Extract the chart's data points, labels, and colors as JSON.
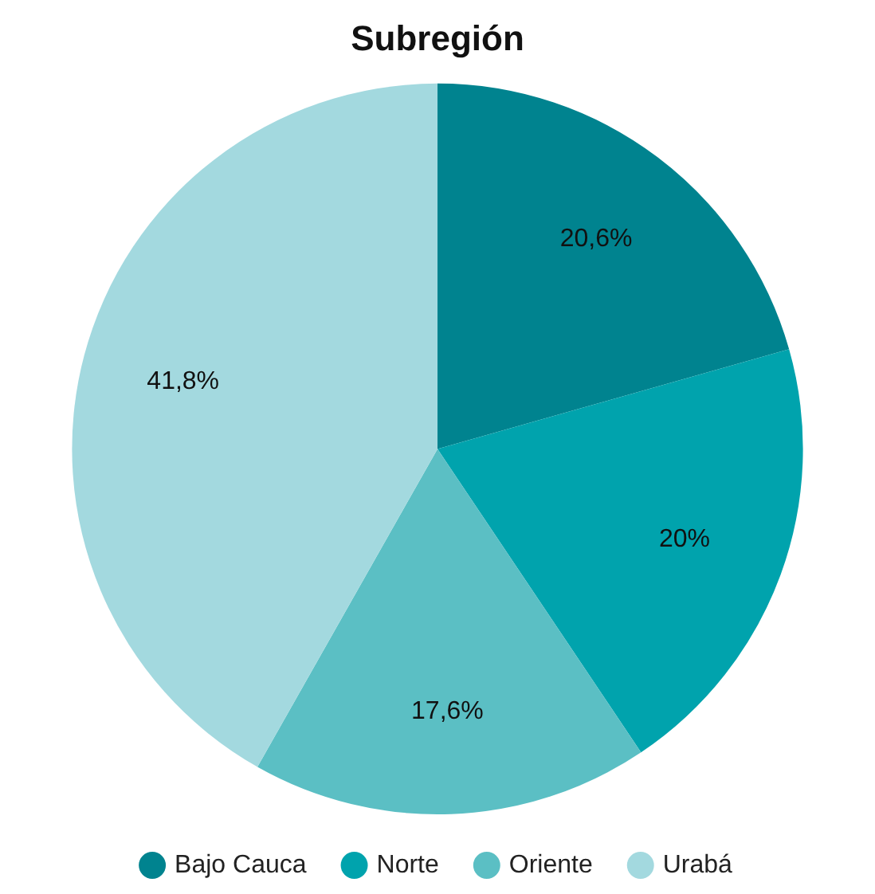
{
  "chart_data": {
    "type": "pie",
    "title": "Subregión",
    "categories": [
      "Bajo Cauca",
      "Norte",
      "Oriente",
      "Urabá"
    ],
    "values": [
      20.6,
      20,
      17.6,
      41.8
    ],
    "value_labels": [
      "20,6%",
      "20%",
      "17,6%",
      "41,8%"
    ],
    "colors": [
      "#00838f",
      "#00a3ad",
      "#5bbfc4",
      "#a3d9df"
    ],
    "legend": "bottom"
  }
}
